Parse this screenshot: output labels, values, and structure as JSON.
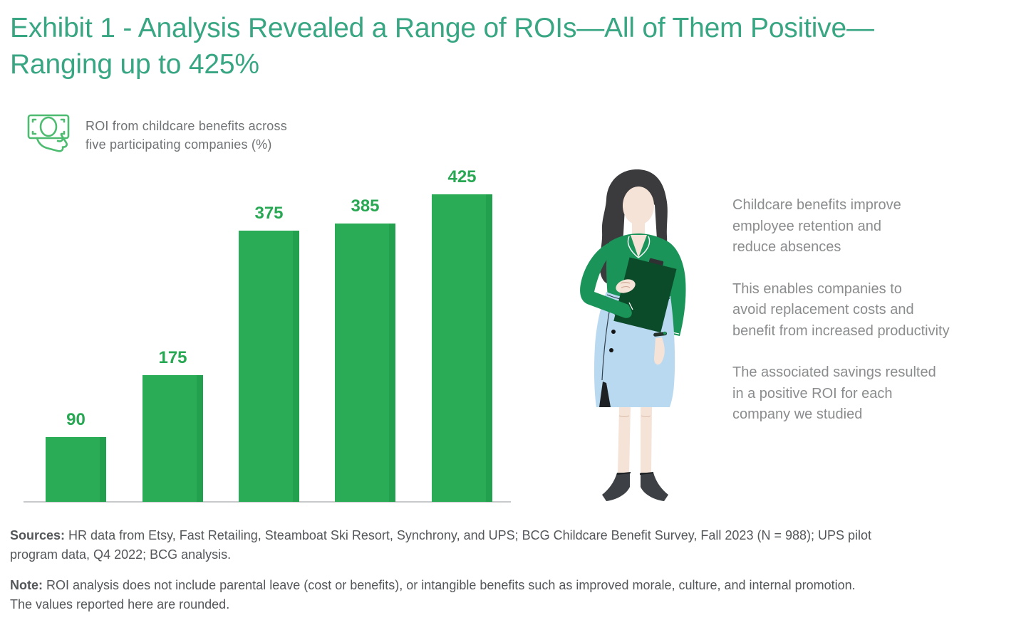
{
  "header": {
    "title": "Exhibit 1 - Analysis Revealed a Range of ROIs—All of Them Positive—\nRanging up to 425%"
  },
  "kicker": {
    "icon": "money-in-hand-icon",
    "label": "ROI from childcare benefits across\nfive participating companies (%)"
  },
  "chart_data": {
    "type": "bar",
    "title": "ROI from childcare benefits across five participating companies (%)",
    "values": [
      90,
      175,
      375,
      385,
      425
    ],
    "data_labels": [
      "90",
      "175",
      "375",
      "385",
      "425"
    ],
    "xlabel": "",
    "ylabel": "",
    "ylim": [
      0,
      450
    ],
    "grid": false,
    "legend": false,
    "x_tick_labels": [
      "",
      "",
      "",
      "",
      ""
    ],
    "bar_color": "#2aab55",
    "bar_edge_color": "#22a04e",
    "label_color": "#29a854",
    "baseline_color": "#c8c9ca"
  },
  "illustration": {
    "name": "woman-with-clipboard",
    "colors": {
      "hair": "#3b3b3d",
      "skin": "#f6e3d7",
      "blouse_green": "#1a9458",
      "clipboard_green": "#0c4b2a",
      "skirt_blue": "#b9d9f1",
      "shoe_dark": "#3d4145"
    }
  },
  "side_text": {
    "paragraphs": [
      "Childcare benefits improve\nemployee retention and\nreduce absences",
      "This enables companies to\navoid replacement costs and\nbenefit from increased productivity",
      "The associated savings resulted\nin a positive ROI for each\ncompany we studied"
    ]
  },
  "footer": {
    "sources_label": "Sources:",
    "sources_text": "HR data from Etsy, Fast Retailing, Steamboat Ski Resort, Synchrony, and UPS; BCG Childcare Benefit Survey, Fall 2023 (N = 988); UPS pilot\nprogram data, Q4 2022; BCG analysis.",
    "note_label": "Note:",
    "note_text": "ROI analysis does not include parental leave (cost or benefits), or intangible benefits such as improved morale, culture, and internal promotion.\nThe values reported here are rounded."
  },
  "colors": {
    "title_green": "#38a683",
    "kicker_gray": "#6f7274",
    "side_gray": "#8a8c8e",
    "footer_gray": "#54575a",
    "icon_green": "#4dbc71"
  }
}
